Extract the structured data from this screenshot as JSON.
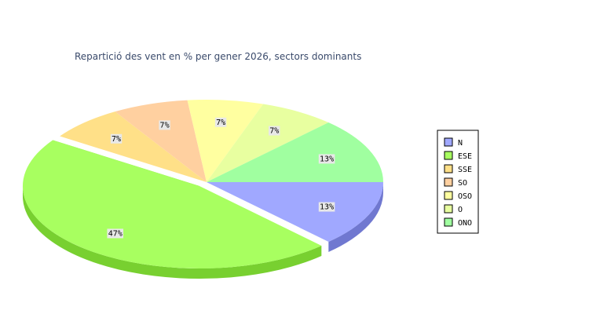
{
  "chart_data": {
    "type": "pie",
    "title": "Repartició des vent en % per gener 2026, sectors dominants",
    "legend_position": "right",
    "exploded_category": "ESE",
    "slices": [
      {
        "label": "N",
        "value": 13,
        "display": "13%",
        "color": "#a0a8ff",
        "side": "#7078d0"
      },
      {
        "label": "ESE",
        "value": 47,
        "display": "47%",
        "color": "#a8ff60",
        "side": "#78d030"
      },
      {
        "label": "SSE",
        "value": 7,
        "display": "7%",
        "color": "#ffe088",
        "side": "#d0b058"
      },
      {
        "label": "SO",
        "value": 7,
        "display": "7%",
        "color": "#ffd0a0",
        "side": "#d0a070"
      },
      {
        "label": "OSO",
        "value": 7,
        "display": "7%",
        "color": "#ffffa0",
        "side": "#d0d070"
      },
      {
        "label": "O",
        "value": 7,
        "display": "7%",
        "color": "#e8ffa0",
        "side": "#b8d070"
      },
      {
        "label": "ONO",
        "value": 13,
        "display": "13%",
        "color": "#a0ffa0",
        "side": "#70d070"
      }
    ]
  }
}
